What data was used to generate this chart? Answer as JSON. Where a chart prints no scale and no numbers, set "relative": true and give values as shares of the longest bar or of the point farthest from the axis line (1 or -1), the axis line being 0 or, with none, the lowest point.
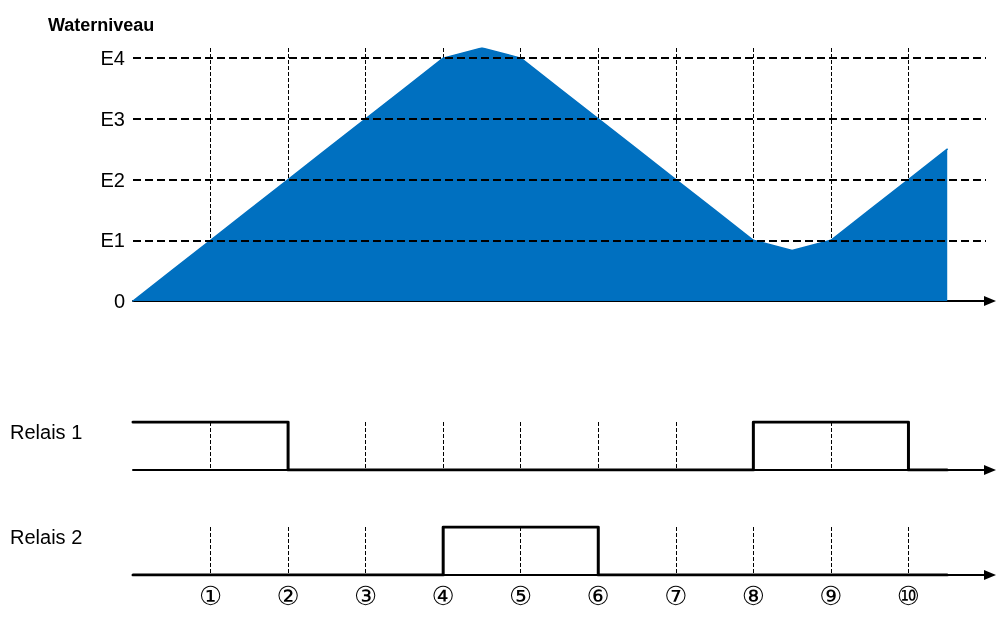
{
  "chart_data": [
    {
      "type": "area",
      "ylabel": "Waterniveau",
      "relative": true,
      "categories": [
        null,
        null,
        null,
        null,
        null,
        null,
        null,
        null,
        null,
        null,
        null,
        null,
        null,
        null,
        null,
        null,
        null,
        null,
        null,
        null,
        null,
        null
      ],
      "series": [
        {
          "color": "#0070c0",
          "values": [
            0,
            0.12,
            0.24,
            0.36,
            0.48,
            0.6,
            0.72,
            0.84,
            0.96,
            1,
            0.96,
            0.84,
            0.72,
            0.6,
            0.48,
            0.36,
            0.24,
            0.2,
            0.24,
            0.36,
            0.48,
            0.6
          ]
        }
      ],
      "ref_lines": [
        {
          "axis": "y",
          "value": 0.24,
          "label": "E1",
          "line_style": "dashed",
          "color": "#000000"
        },
        {
          "axis": "y",
          "value": 0.48,
          "label": "E2",
          "line_style": "dashed",
          "color": "#000000"
        },
        {
          "axis": "y",
          "value": 0.72,
          "label": "E3",
          "line_style": "dashed",
          "color": "#000000"
        },
        {
          "axis": "y",
          "value": 0.96,
          "label": "E4",
          "line_style": "dashed",
          "color": "#000000"
        }
      ],
      "annotations": [
        "0"
      ],
      "grid": "x",
      "tick_labels": false,
      "marker": "none"
    },
    {
      "type": "step",
      "ylabel": "Relais 1",
      "relative": true,
      "categories": [
        null,
        null,
        null,
        null,
        null,
        null,
        null,
        null,
        null,
        null,
        null,
        null,
        null,
        null,
        null,
        null,
        null,
        null,
        null,
        null,
        null,
        null
      ],
      "series": [
        {
          "color": "#000000",
          "values": [
            1,
            1,
            1,
            1,
            0,
            0,
            0,
            0,
            0,
            0,
            0,
            0,
            0,
            0,
            0,
            0,
            1,
            1,
            1,
            1,
            0,
            0
          ]
        }
      ],
      "grid": "x",
      "tick_labels": false,
      "marker": "none"
    },
    {
      "type": "step",
      "ylabel": "Relais 2",
      "relative": true,
      "categories": [
        null,
        null,
        "①",
        null,
        "②",
        null,
        "③",
        null,
        "④",
        null,
        "⑤",
        null,
        "⑥",
        null,
        "⑦",
        null,
        "⑧",
        null,
        "⑨",
        null,
        "⑩",
        null
      ],
      "series": [
        {
          "color": "#000000",
          "values": [
            0,
            0,
            0,
            0,
            0,
            0,
            0,
            0,
            1,
            1,
            1,
            1,
            0,
            0,
            0,
            0,
            0,
            0,
            0,
            0,
            0,
            0
          ]
        }
      ],
      "grid": "x",
      "tick_labels": "x",
      "marker": "none"
    }
  ]
}
